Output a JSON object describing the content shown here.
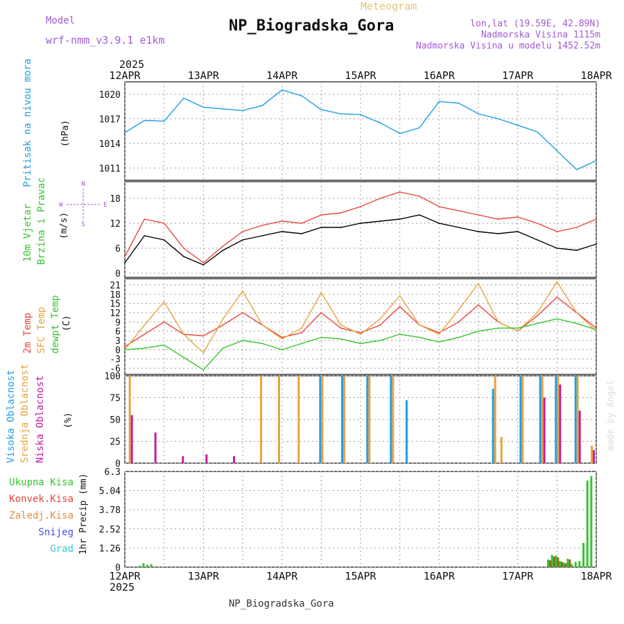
{
  "header": {
    "model_label": "Model",
    "model_value": "wrf-nmm_v3.9.1 e1km",
    "meteogram_label": "Meteogram",
    "station_title": "NP_Biogradska_Gora",
    "coords": "lon,lat (19.59E, 42.89N)",
    "elevation": "Nadmorska Visina 1115m",
    "model_elevation": "Nadmorska Visina u modelu 1452.52m",
    "year_top": "2025",
    "year_bottom": "2025",
    "footer_title": "NP_Biogradska_Gora",
    "watermark": "made by Angel"
  },
  "chart_data": [
    {
      "type": "line",
      "id": "pressure",
      "title": "",
      "ylabel_lines": [
        "Pritisak na nivou mora"
      ],
      "unit": "(hPa)",
      "x_dates": [
        "12APR",
        "13APR",
        "14APR",
        "15APR",
        "16APR",
        "17APR",
        "18APR"
      ],
      "x_days": [
        0,
        0.25,
        0.5,
        0.75,
        1,
        1.25,
        1.5,
        1.75,
        2,
        2.25,
        2.5,
        2.75,
        3,
        3.25,
        3.5,
        3.75,
        4,
        4.25,
        4.5,
        4.75,
        5,
        5.25,
        5.5,
        5.75,
        6
      ],
      "yticks": [
        "1011",
        "1014",
        "1017",
        "1020"
      ],
      "ylim": [
        1009.5,
        1021.5
      ],
      "series": [
        {
          "color": "#1e9ee8",
          "values": [
            1015.3,
            1016.8,
            1016.7,
            1019.5,
            1018.4,
            1018.2,
            1018.0,
            1018.6,
            1020.5,
            1019.8,
            1018.1,
            1017.6,
            1017.5,
            1016.5,
            1015.2,
            1015.9,
            1019.1,
            1018.9,
            1017.6,
            1017.0,
            1016.2,
            1015.4,
            1013.1,
            1010.8,
            1011.9
          ]
        }
      ]
    },
    {
      "type": "line",
      "id": "wind",
      "title": "",
      "ylabel_lines": [
        "10m Vjetar",
        "Brzina i Pravac"
      ],
      "unit": "(m/s)",
      "compass": {
        "n": "N",
        "s": "S",
        "e": "E",
        "w": "W"
      },
      "x_days": [
        0,
        0.25,
        0.5,
        0.75,
        1,
        1.25,
        1.5,
        1.75,
        2,
        2.25,
        2.5,
        2.75,
        3,
        3.25,
        3.5,
        3.75,
        4,
        4.25,
        4.5,
        4.75,
        5,
        5.25,
        5.5,
        5.75,
        6
      ],
      "yticks": [
        "0",
        "6",
        "12",
        "18"
      ],
      "ylim": [
        -1,
        22
      ],
      "series": [
        {
          "name": "",
          "color": "#000000",
          "values": [
            2.5,
            9.0,
            8.0,
            4.0,
            2.0,
            5.5,
            8.0,
            9.0,
            10.0,
            9.5,
            11.0,
            11.0,
            12.0,
            12.5,
            13.0,
            14.0,
            12.0,
            11.0,
            10.0,
            9.5,
            10.0,
            8.0,
            6.0,
            5.5,
            7.0
          ]
        },
        {
          "name": "",
          "color": "#e8453c",
          "values": [
            4.0,
            13.0,
            12.0,
            6.0,
            2.5,
            6.5,
            10.0,
            11.5,
            12.5,
            12.0,
            14.0,
            14.5,
            16.0,
            18.0,
            19.5,
            18.5,
            16.0,
            15.0,
            14.0,
            13.0,
            13.5,
            12.0,
            10.0,
            11.0,
            13.0
          ]
        }
      ]
    },
    {
      "type": "line",
      "id": "temperature",
      "title": "",
      "ylabel_lines": [
        "2m Temp",
        "SFC Temp",
        "dewpt Temp"
      ],
      "unit": "(C)",
      "x_days": [
        0,
        0.25,
        0.5,
        0.75,
        1,
        1.25,
        1.5,
        1.75,
        2,
        2.25,
        2.5,
        2.75,
        3,
        3.25,
        3.5,
        3.75,
        4,
        4.25,
        4.5,
        4.75,
        5,
        5.25,
        5.5,
        5.75,
        6
      ],
      "yticks": [
        "-6",
        "-3",
        "0",
        "3",
        "6",
        "9",
        "12",
        "15",
        "18",
        "21"
      ],
      "ylim": [
        -8,
        23
      ],
      "series": [
        {
          "name": "2m Temp",
          "color": "#e8453c",
          "values": [
            1.0,
            5.0,
            9.0,
            5.0,
            4.5,
            8.0,
            12.0,
            8.0,
            4.0,
            5.5,
            12.0,
            7.0,
            5.5,
            8.0,
            14.0,
            8.0,
            5.5,
            9.0,
            14.5,
            9.0,
            6.0,
            11.0,
            17.0,
            12.0,
            7.0
          ]
        },
        {
          "name": "SFC Temp",
          "color": "#e8a33c",
          "values": [
            0.0,
            8.0,
            15.5,
            5.0,
            -1.0,
            10.0,
            19.0,
            8.0,
            3.5,
            7.0,
            18.5,
            8.0,
            5.0,
            10.0,
            17.5,
            8.0,
            5.0,
            13.0,
            21.5,
            9.0,
            6.0,
            12.0,
            22.0,
            12.0,
            6.0
          ]
        },
        {
          "name": "dewpt Temp",
          "color": "#35c52e",
          "values": [
            0.0,
            0.5,
            1.5,
            -2.5,
            -6.5,
            0.5,
            3.0,
            2.0,
            0.0,
            2.0,
            4.0,
            3.5,
            2.0,
            3.0,
            5.0,
            4.0,
            2.5,
            4.0,
            6.0,
            7.0,
            7.0,
            8.5,
            10.0,
            8.5,
            6.5
          ]
        }
      ]
    },
    {
      "type": "bar",
      "id": "clouds",
      "title": "",
      "ylabel_lines": [
        "Visoka Oblacnost",
        "Srednja Oblacnost",
        "Niska Oblacnost"
      ],
      "unit": "(%)",
      "x_days": [
        0.05,
        0.35,
        0.7,
        1.0,
        1.35,
        1.72,
        1.95,
        2.2,
        2.5,
        2.78,
        3.1,
        3.4,
        3.6,
        3.9,
        4.2,
        4.5,
        4.7,
        4.78,
        5.05,
        5.3,
        5.5,
        5.75,
        5.93
      ],
      "yticks": [
        "0",
        "25",
        "50",
        "75",
        "100"
      ],
      "ylim": [
        0,
        100
      ],
      "series": [
        {
          "name": "Visoka Oblacnost",
          "color": "#1e9ee8",
          "values": [
            0,
            0,
            0,
            0,
            0,
            0,
            0,
            0,
            100,
            100,
            100,
            100,
            72,
            0,
            0,
            0,
            85,
            0,
            100,
            100,
            100,
            100,
            0
          ]
        },
        {
          "name": "Srednja Oblacnost",
          "color": "#e8a33c",
          "values": [
            100,
            0,
            0,
            0,
            0,
            100,
            100,
            100,
            100,
            100,
            100,
            100,
            0,
            0,
            0,
            0,
            100,
            30,
            100,
            100,
            100,
            100,
            20
          ]
        },
        {
          "name": "Niska Oblacnost",
          "color": "#c21e9a",
          "values": [
            55,
            35,
            8,
            10,
            8,
            0,
            0,
            0,
            0,
            0,
            0,
            0,
            0,
            0,
            0,
            0,
            0,
            0,
            0,
            75,
            90,
            60,
            15
          ]
        }
      ]
    },
    {
      "type": "bar",
      "id": "precip",
      "title": "",
      "ylabel_lines": [
        "1hr Precip (mm)"
      ],
      "legend": [
        "Ukupna Kisa",
        "Konvek.Kisa",
        "Zaledj.Kisa",
        "Snijeg",
        "Grad"
      ],
      "legend_colors": [
        "#35c52e",
        "#e8453c",
        "#e88a3c",
        "#4b4be8",
        "#3cc8c8"
      ],
      "x_days": [
        0.2,
        0.25,
        0.3,
        0.35,
        5.4,
        5.45,
        5.5,
        5.55,
        5.6,
        5.65,
        5.7,
        5.75,
        5.8,
        5.85,
        5.9,
        5.95
      ],
      "yticks": [
        "0",
        "1.26",
        "2.52",
        "3.78",
        "5.04",
        "6.3"
      ],
      "ylim": [
        0,
        6.3
      ],
      "series": [
        {
          "name": "Ukupna Kisa",
          "color": "#35c52e",
          "values": [
            0.1,
            0.25,
            0.15,
            0.2,
            0.5,
            0.8,
            0.75,
            0.4,
            0.3,
            0.55,
            0.2,
            0.35,
            0.4,
            1.6,
            5.7,
            6.0
          ]
        },
        {
          "name": "Konvek.Kisa",
          "color": "#8a6b2a",
          "values": [
            0,
            0,
            0,
            0,
            0.45,
            0.7,
            0.65,
            0.35,
            0.25,
            0.5,
            0,
            0,
            0,
            0,
            0,
            0
          ]
        }
      ]
    }
  ]
}
